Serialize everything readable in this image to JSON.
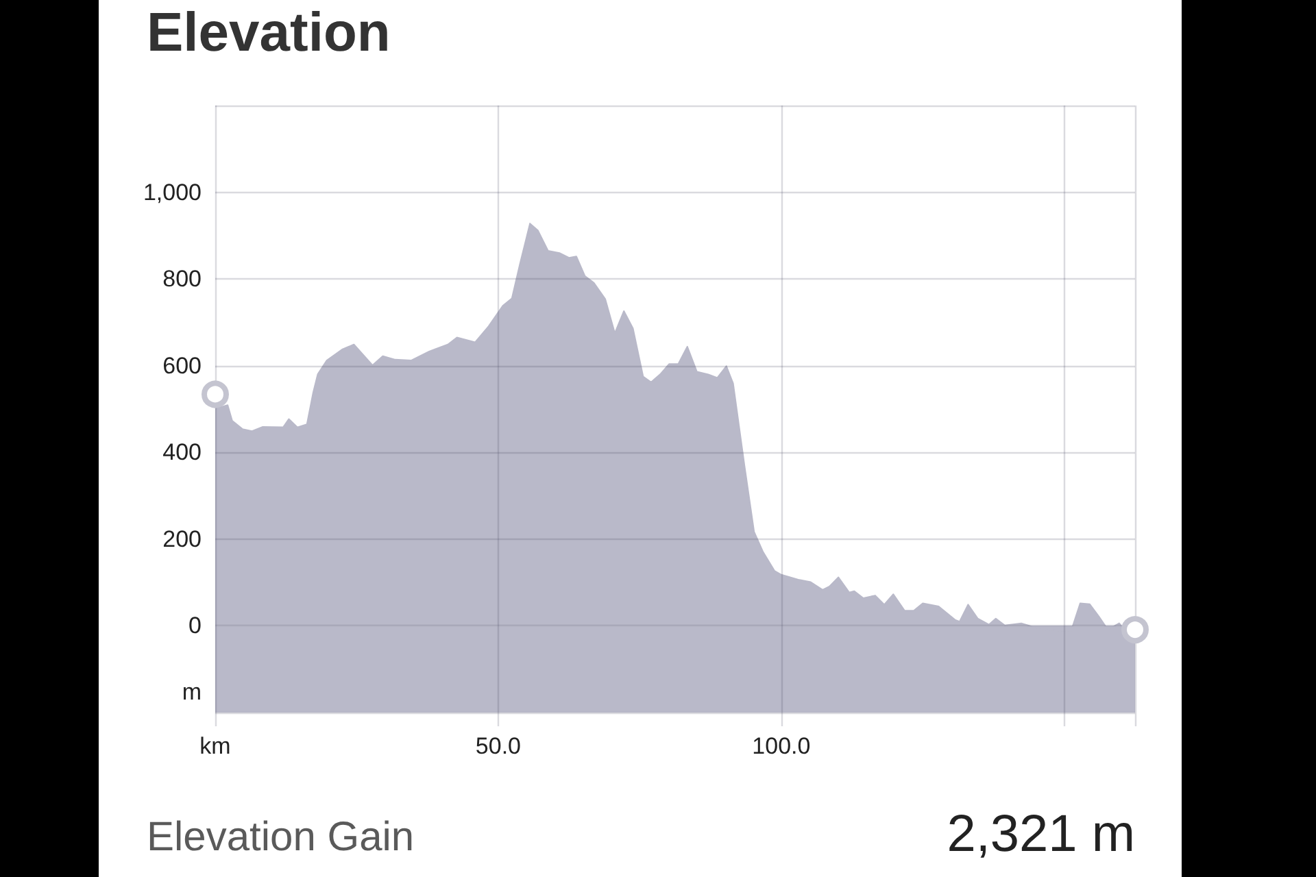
{
  "chart_data": {
    "type": "area",
    "title": "Elevation",
    "ylabel": "m",
    "x": [
      0,
      2.2,
      3.0,
      4.8,
      6.5,
      8.4,
      12.0,
      13.0,
      14.5,
      16.2,
      17.3,
      18.1,
      19.7,
      22.5,
      24.5,
      27.8,
      29.6,
      31.8,
      34.6,
      37.8,
      41.1,
      42.7,
      45.9,
      48.3,
      50.8,
      52.4,
      53.8,
      55.6,
      57.0,
      58.8,
      60.8,
      62.5,
      63.8,
      65.3,
      66.9,
      68.9,
      70.6,
      72.2,
      73.8,
      75.6,
      77.0,
      78.6,
      80.2,
      81.8,
      83.4,
      85.1,
      87.1,
      88.7,
      90.3,
      91.5,
      93.5,
      95.2,
      96.8,
      98.8,
      100.0,
      103.2,
      105.2,
      107.3,
      108.5,
      110.1,
      112.0,
      112.9,
      114.5,
      116.6,
      118.2,
      119.8,
      121.8,
      123.4,
      125.0,
      127.8,
      130.7,
      131.5,
      133.0,
      134.7,
      136.7,
      137.9,
      139.5,
      142.4,
      143.6,
      146.0,
      151.2,
      152.8,
      154.5,
      156.1,
      157.7,
      159.7,
      162.5
    ],
    "series": [
      {
        "color": "#b9b9c9",
        "values": [
          501,
          509,
          473,
          454,
          449,
          459,
          458,
          477,
          458,
          465,
          538,
          580,
          612,
          638,
          649,
          601,
          622,
          614,
          612,
          633,
          649,
          665,
          654,
          691,
          738,
          755,
          833,
          928,
          912,
          865,
          860,
          849,
          852,
          807,
          791,
          754,
          675,
          726,
          686,
          575,
          562,
          580,
          604,
          604,
          644,
          586,
          580,
          572,
          599,
          559,
          370,
          217,
          170,
          127,
          118,
          106,
          101,
          83,
          91,
          112,
          77,
          80,
          64,
          70,
          49,
          73,
          35,
          35,
          52,
          45,
          14,
          10,
          49,
          17,
          3,
          17,
          1,
          6,
          1,
          -9,
          -12,
          52,
          50,
          22,
          -9,
          6,
          -40
        ]
      },
      {
        "type": "scatter",
        "color": "#c4c4d0",
        "marker": "circle",
        "x": [
          0,
          162.5
        ],
        "values": [
          534,
          -9
        ]
      }
    ],
    "bands": [
      {
        "axis": "y",
        "from": -200,
        "to": 0,
        "color": "#b9b9c9"
      }
    ],
    "xlim": [
      0,
      162.5
    ],
    "xticks": [
      {
        "value": 0,
        "label": "km"
      },
      {
        "value": 50,
        "label": "50.0"
      },
      {
        "value": 100,
        "label": "100.0"
      },
      {
        "value": 150,
        "label": null
      },
      {
        "value": 162.5,
        "label": null
      }
    ],
    "ylim": [
      -200,
      1200
    ],
    "yticks": [
      {
        "value": -200,
        "label": null
      },
      0,
      200,
      400,
      600,
      800,
      {
        "value": 1000,
        "label": "1,000"
      },
      {
        "value": 1200,
        "label": null
      }
    ],
    "grid": true,
    "annotations": [
      "Elevation Gain",
      "2,321 m"
    ]
  }
}
